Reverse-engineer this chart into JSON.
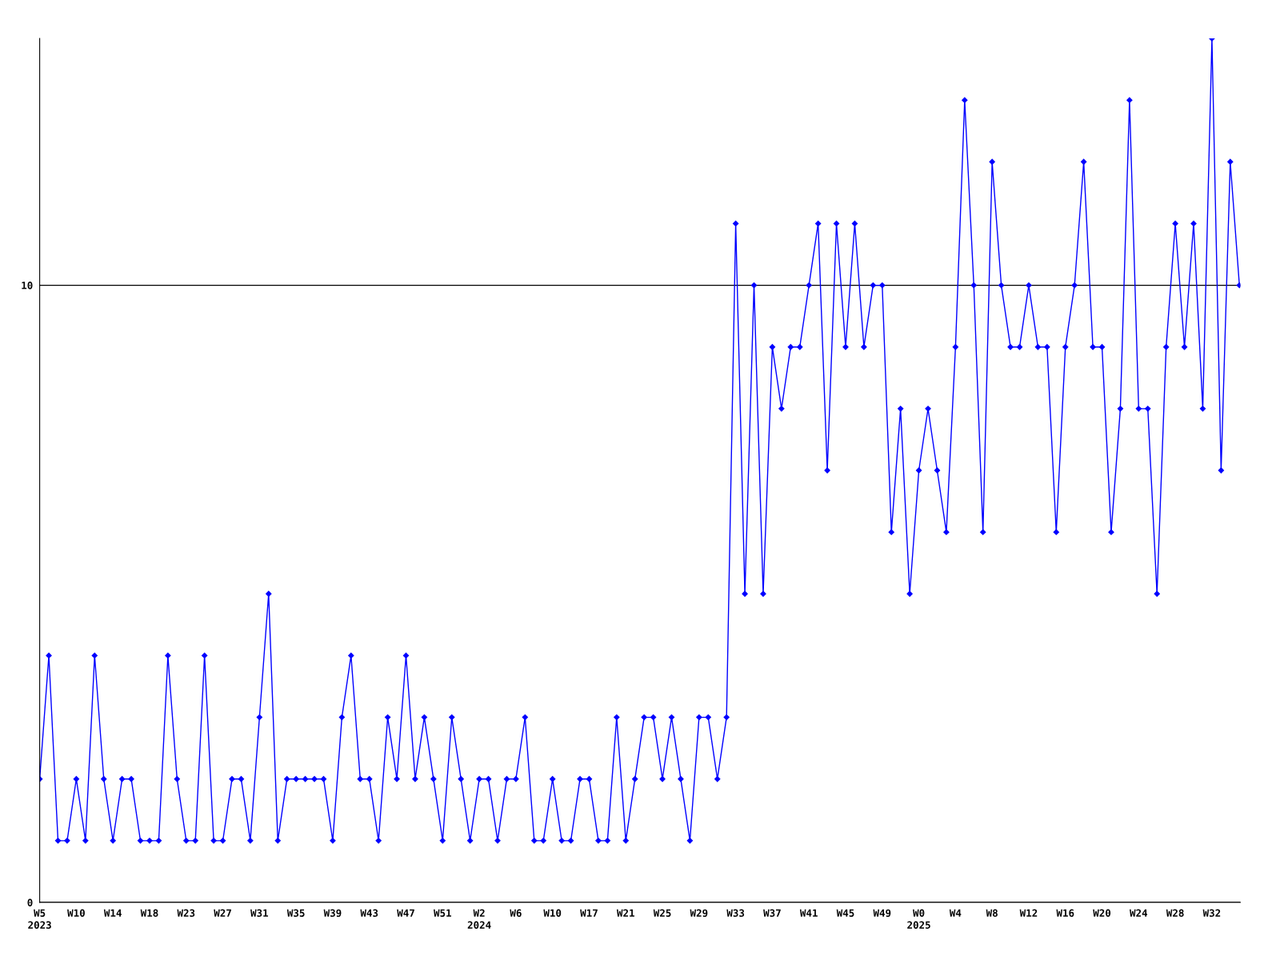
{
  "chart_data": {
    "type": "line",
    "categories": [
      "W5\n2023",
      null,
      null,
      null,
      "W10",
      null,
      null,
      null,
      "W14",
      null,
      null,
      null,
      "W18",
      null,
      null,
      null,
      "W23",
      null,
      null,
      null,
      "W27",
      null,
      null,
      null,
      "W31",
      null,
      null,
      null,
      "W35",
      null,
      null,
      null,
      "W39",
      null,
      null,
      null,
      "W43",
      null,
      null,
      null,
      "W47",
      null,
      null,
      null,
      "W51",
      null,
      null,
      null,
      "W2\n2024",
      null,
      null,
      null,
      "W6",
      null,
      null,
      null,
      "W10",
      null,
      null,
      null,
      "W17",
      null,
      null,
      null,
      "W21",
      null,
      null,
      null,
      "W25",
      null,
      null,
      null,
      "W29",
      null,
      null,
      null,
      "W33",
      null,
      null,
      null,
      "W37",
      null,
      null,
      null,
      "W41",
      null,
      null,
      null,
      "W45",
      null,
      null,
      null,
      "W49",
      null,
      null,
      null,
      "W0\n2025",
      null,
      null,
      null,
      "W4",
      null,
      null,
      null,
      "W8",
      null,
      null,
      null,
      "W12",
      null,
      null,
      null,
      "W16",
      null,
      null,
      null,
      "W20",
      null,
      null,
      null,
      "W24",
      null,
      null,
      null,
      "W28",
      null,
      null,
      null,
      "W32",
      null,
      null,
      null
    ],
    "series": [
      {
        "color": "#0000ff",
        "values": [
          2,
          4,
          1,
          1,
          2,
          1,
          4,
          2,
          1,
          2,
          2,
          1,
          1,
          1,
          4,
          2,
          1,
          1,
          4,
          1,
          1,
          2,
          2,
          1,
          3,
          5,
          1,
          2,
          2,
          2,
          2,
          2,
          1,
          3,
          4,
          2,
          2,
          1,
          3,
          2,
          4,
          2,
          3,
          2,
          1,
          3,
          2,
          1,
          2,
          2,
          1,
          2,
          2,
          3,
          1,
          1,
          2,
          1,
          1,
          2,
          2,
          1,
          1,
          3,
          1,
          2,
          3,
          3,
          2,
          3,
          2,
          1,
          3,
          3,
          2,
          3,
          11,
          5,
          10,
          5,
          9,
          8,
          9,
          9,
          10,
          11,
          7,
          11,
          9,
          11,
          9,
          10,
          10,
          6,
          8,
          5,
          7,
          8,
          7,
          6,
          9,
          13,
          10,
          6,
          12,
          10,
          9,
          9,
          10,
          9,
          9,
          6,
          9,
          10,
          12,
          9,
          9,
          6,
          8,
          13,
          8,
          8,
          5,
          9,
          11,
          9,
          11,
          8,
          14,
          7,
          12,
          10
        ]
      }
    ],
    "ylim": [
      0,
      14
    ],
    "yticks": [
      0,
      10
    ],
    "grid": "y",
    "marker": "diamond",
    "line_style": "solid"
  }
}
